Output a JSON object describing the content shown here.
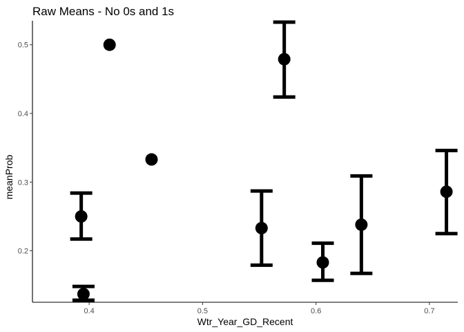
{
  "chart_data": {
    "type": "scatter",
    "title": "Raw Means - No 0s and 1s",
    "xlabel": "Wtr_Year_GD_Recent",
    "ylabel": "meanProb",
    "xlim": [
      0.35,
      0.725
    ],
    "ylim": [
      0.125,
      0.535
    ],
    "xticks": [
      0.4,
      0.5,
      0.6,
      0.7
    ],
    "xtick_labels": [
      "0.4",
      "0.5",
      "0.6",
      "0.7"
    ],
    "yticks": [
      0.2,
      0.3,
      0.4,
      0.5
    ],
    "ytick_labels": [
      "0.2",
      "0.3",
      "0.4",
      "0.5"
    ],
    "grid": false,
    "points": [
      {
        "x": 0.393,
        "y": 0.25,
        "ymin": 0.217,
        "ymax": 0.284
      },
      {
        "x": 0.395,
        "y": 0.137,
        "ymin": 0.128,
        "ymax": 0.148
      },
      {
        "x": 0.418,
        "y": 0.5
      },
      {
        "x": 0.455,
        "y": 0.333
      },
      {
        "x": 0.552,
        "y": 0.233,
        "ymin": 0.179,
        "ymax": 0.287
      },
      {
        "x": 0.572,
        "y": 0.479,
        "ymin": 0.424,
        "ymax": 0.533
      },
      {
        "x": 0.606,
        "y": 0.183,
        "ymin": 0.157,
        "ymax": 0.211
      },
      {
        "x": 0.64,
        "y": 0.238,
        "ymin": 0.167,
        "ymax": 0.309
      },
      {
        "x": 0.715,
        "y": 0.286,
        "ymin": 0.225,
        "ymax": 0.346
      }
    ]
  }
}
